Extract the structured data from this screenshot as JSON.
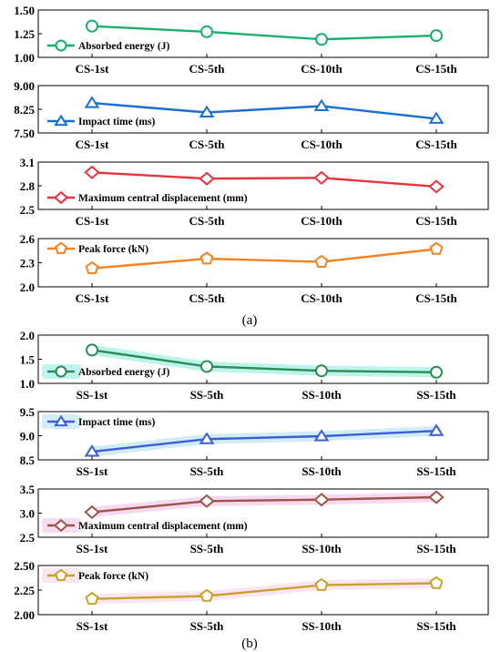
{
  "captions": [
    "(a)",
    "(b)"
  ],
  "chart_data": [
    {
      "type": "line",
      "group": "a",
      "categories": [
        "CS-1st",
        "CS-5th",
        "CS-10th",
        "CS-15th"
      ],
      "series": [
        {
          "name": "Absorbed energy (J)",
          "values": [
            1.33,
            1.27,
            1.19,
            1.23
          ],
          "color": "#1aaf6c",
          "marker": "circle"
        }
      ],
      "ylim": [
        1.0,
        1.5
      ],
      "yticks": [
        "1.00",
        "1.25",
        "1.50"
      ],
      "grid": false,
      "legend": "bottom-left",
      "highlight": false
    },
    {
      "type": "line",
      "group": "a",
      "categories": [
        "CS-1st",
        "CS-5th",
        "CS-10th",
        "CS-15th"
      ],
      "series": [
        {
          "name": "Impact time (ms)",
          "values": [
            8.45,
            8.15,
            8.35,
            7.95
          ],
          "color": "#1a6fd4",
          "marker": "triangle"
        }
      ],
      "ylim": [
        7.5,
        9.0
      ],
      "yticks": [
        "7.50",
        "8.25",
        "9.00"
      ],
      "grid": false,
      "legend": "bottom-left",
      "highlight": false
    },
    {
      "type": "line",
      "group": "a",
      "categories": [
        "CS-1st",
        "CS-5th",
        "CS-10th",
        "CS-15th"
      ],
      "series": [
        {
          "name": "Maximum central displacement (mm)",
          "values": [
            2.97,
            2.89,
            2.9,
            2.79
          ],
          "color": "#e8323c",
          "marker": "diamond"
        }
      ],
      "ylim": [
        2.5,
        3.1
      ],
      "yticks": [
        "2.5",
        "2.8",
        "3.1"
      ],
      "grid": false,
      "legend": "bottom-left",
      "highlight": false
    },
    {
      "type": "line",
      "group": "a",
      "categories": [
        "CS-1st",
        "CS-5th",
        "CS-10th",
        "CS-15th"
      ],
      "series": [
        {
          "name": "Peak force (kN)",
          "values": [
            2.23,
            2.35,
            2.31,
            2.47
          ],
          "color": "#f5821f",
          "marker": "pentagon"
        }
      ],
      "ylim": [
        2.0,
        2.6
      ],
      "yticks": [
        "2.0",
        "2.3",
        "2.6"
      ],
      "grid": false,
      "legend": "top-left",
      "highlight": false
    },
    {
      "type": "line",
      "group": "b",
      "categories": [
        "SS-1st",
        "SS-5th",
        "SS-10th",
        "SS-15th"
      ],
      "series": [
        {
          "name": "Absorbed energy (J)",
          "values": [
            1.69,
            1.35,
            1.26,
            1.23
          ],
          "color": "#2e8b57",
          "marker": "circle",
          "glow": "#aef2e6"
        }
      ],
      "ylim": [
        1.0,
        2.0
      ],
      "yticks": [
        "1.0",
        "1.5",
        "2.0"
      ],
      "grid": false,
      "legend": "bottom-left",
      "highlight": true
    },
    {
      "type": "line",
      "group": "b",
      "categories": [
        "SS-1st",
        "SS-5th",
        "SS-10th",
        "SS-15th"
      ],
      "series": [
        {
          "name": "Impact time (ms)",
          "values": [
            8.67,
            8.93,
            8.99,
            9.1
          ],
          "color": "#3d5cd6",
          "marker": "triangle",
          "glow": "#c8eaf6"
        }
      ],
      "ylim": [
        8.5,
        9.5
      ],
      "yticks": [
        "8.5",
        "9.0",
        "9.5"
      ],
      "grid": false,
      "legend": "top-left",
      "highlight": true
    },
    {
      "type": "line",
      "group": "b",
      "categories": [
        "SS-1st",
        "SS-5th",
        "SS-10th",
        "SS-15th"
      ],
      "series": [
        {
          "name": "Maximum central displacement (mm)",
          "values": [
            3.02,
            3.25,
            3.28,
            3.33
          ],
          "color": "#a0524a",
          "marker": "diamond",
          "glow": "#f6d3ec"
        }
      ],
      "ylim": [
        2.5,
        3.5
      ],
      "yticks": [
        "2.5",
        "3.0",
        "3.5"
      ],
      "grid": false,
      "legend": "bottom-left",
      "highlight": true
    },
    {
      "type": "line",
      "group": "b",
      "categories": [
        "SS-1st",
        "SS-5th",
        "SS-10th",
        "SS-15th"
      ],
      "series": [
        {
          "name": "Peak force (kN)",
          "values": [
            2.16,
            2.19,
            2.3,
            2.32
          ],
          "color": "#c9a227",
          "marker": "pentagon",
          "glow": "#f8e1f1"
        }
      ],
      "ylim": [
        2.0,
        2.5
      ],
      "yticks": [
        "2.00",
        "2.25",
        "2.50"
      ],
      "grid": false,
      "legend": "top-left",
      "highlight": true
    }
  ]
}
